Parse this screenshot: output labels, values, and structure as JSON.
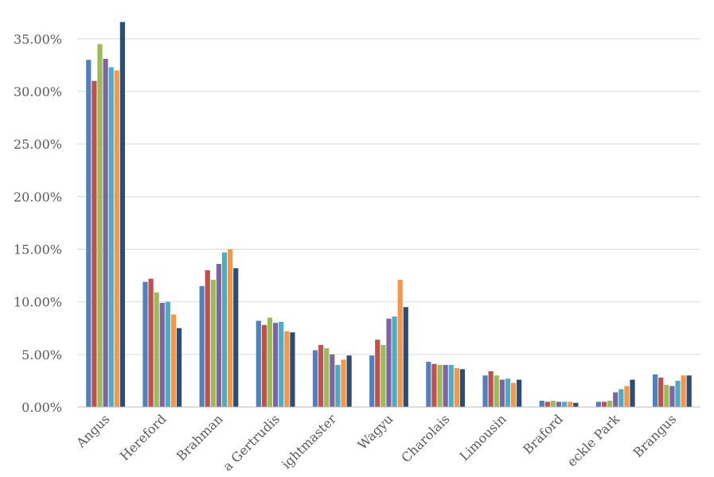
{
  "chart_data": {
    "type": "bar",
    "categories": [
      "Angus",
      "Hereford",
      "Brahman",
      "Santa Gertrudis",
      "Droughtmaster",
      "Wagyu",
      "Charolais",
      "Limousin",
      "Braford",
      "Speckle Park",
      "Brangus"
    ],
    "category_labels_visible": [
      "Angus",
      "Hereford",
      "Brahman",
      "a Gertrudis",
      "ightmaster",
      "Wagyu",
      "Charolais",
      "Limousin",
      "Braford",
      "eckle Park",
      "Brangus"
    ],
    "yticks": [
      "0.00%",
      "5.00%",
      "10.00%",
      "15.00%",
      "20.00%",
      "25.00%",
      "30.00%",
      "35.00%"
    ],
    "ylim": [
      0,
      36.5
    ],
    "grid": true,
    "series_colors": [
      "#4f81bd",
      "#c0504d",
      "#9bbb59",
      "#8064a2",
      "#4bacc6",
      "#f79646",
      "#2c4d75"
    ],
    "series": [
      {
        "values": [
          33.0,
          11.9,
          11.5,
          8.2,
          5.4,
          4.9,
          4.3,
          3.0,
          0.6,
          0.5,
          3.1
        ]
      },
      {
        "values": [
          31.0,
          12.2,
          13.0,
          7.8,
          5.9,
          6.4,
          4.1,
          3.4,
          0.5,
          0.5,
          2.8
        ]
      },
      {
        "values": [
          34.5,
          10.9,
          12.1,
          8.5,
          5.6,
          5.9,
          4.0,
          3.0,
          0.6,
          0.6,
          2.1
        ]
      },
      {
        "values": [
          33.1,
          9.9,
          13.6,
          8.0,
          5.0,
          8.4,
          4.0,
          2.6,
          0.5,
          1.4,
          2.0
        ]
      },
      {
        "values": [
          32.3,
          10.0,
          14.7,
          8.1,
          4.0,
          8.6,
          4.0,
          2.7,
          0.5,
          1.7,
          2.5
        ]
      },
      {
        "values": [
          32.0,
          8.8,
          15.0,
          7.2,
          4.5,
          12.1,
          3.7,
          2.3,
          0.5,
          2.0,
          3.0
        ]
      },
      {
        "values": [
          36.6,
          7.5,
          13.2,
          7.1,
          4.9,
          9.5,
          3.6,
          2.6,
          0.4,
          2.6,
          3.0
        ]
      }
    ]
  }
}
